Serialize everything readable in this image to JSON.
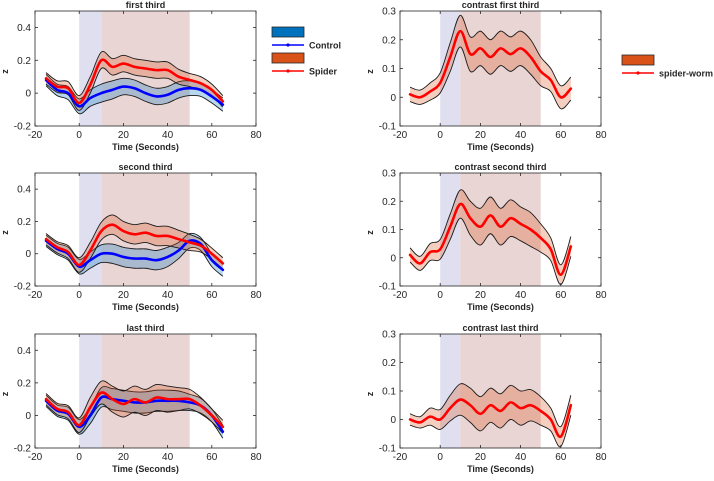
{
  "chart_data": [
    {
      "type": "line",
      "title": "first third",
      "xlabel": "Time (Seconds)",
      "ylabel": "z",
      "xlim": [
        -20,
        80
      ],
      "ylim": [
        -0.2,
        0.5
      ],
      "xticks": [
        "-20",
        "0",
        "20",
        "40",
        "60",
        "80"
      ],
      "yticks": [
        "-0.2",
        "0",
        "0.2",
        "0.4"
      ],
      "shaded_regions": [
        {
          "name": "anticipation",
          "x": [
            0,
            10
          ],
          "color": "#dcdcee"
        },
        {
          "name": "stimulus",
          "x": [
            10,
            50
          ],
          "color": "#e8d0d0"
        }
      ],
      "x": [
        -15,
        -10,
        -5,
        0,
        5,
        10,
        15,
        20,
        25,
        30,
        35,
        40,
        45,
        50,
        55,
        60,
        65
      ],
      "series": [
        {
          "name": "Control",
          "color": "#0000ff",
          "band_color": "#0072bd",
          "values": [
            0.08,
            0.02,
            0.0,
            -0.08,
            -0.03,
            0.0,
            0.02,
            0.04,
            0.03,
            0.0,
            -0.02,
            -0.01,
            0.02,
            0.03,
            0.02,
            -0.02,
            -0.07
          ],
          "band": [
            0.035,
            0.035,
            0.04,
            0.045,
            0.05,
            0.055,
            0.055,
            0.05,
            0.05,
            0.05,
            0.05,
            0.05,
            0.05,
            0.045,
            0.04,
            0.04,
            0.04
          ]
        },
        {
          "name": "Spider",
          "color": "#ff0000",
          "band_color": "#d95319",
          "values": [
            0.09,
            0.04,
            0.03,
            -0.06,
            0.05,
            0.2,
            0.16,
            0.18,
            0.16,
            0.15,
            0.14,
            0.14,
            0.1,
            0.08,
            0.06,
            0.02,
            -0.05
          ],
          "band": [
            0.035,
            0.035,
            0.04,
            0.045,
            0.05,
            0.05,
            0.05,
            0.05,
            0.05,
            0.05,
            0.05,
            0.05,
            0.045,
            0.04,
            0.04,
            0.035,
            0.035
          ]
        }
      ]
    },
    {
      "type": "line",
      "title": "contrast first third",
      "xlabel": "Time (Seconds)",
      "ylabel": "z",
      "xlim": [
        -20,
        80
      ],
      "ylim": [
        -0.1,
        0.3
      ],
      "xticks": [
        "-20",
        "0",
        "20",
        "40",
        "60",
        "80"
      ],
      "yticks": [
        "-0.1",
        "0",
        "0.1",
        "0.2",
        "0.3"
      ],
      "shaded_regions": [
        {
          "name": "anticipation",
          "x": [
            0,
            10
          ],
          "color": "#dcdcee"
        },
        {
          "name": "stimulus",
          "x": [
            10,
            50
          ],
          "color": "#e8d0d0"
        }
      ],
      "x": [
        -15,
        -10,
        -5,
        0,
        5,
        10,
        15,
        20,
        25,
        30,
        35,
        40,
        45,
        50,
        55,
        60,
        65
      ],
      "series": [
        {
          "name": "spider-worm",
          "color": "#ff0000",
          "band_color": "#d95319",
          "values": [
            0.01,
            0.0,
            0.02,
            0.05,
            0.14,
            0.23,
            0.15,
            0.17,
            0.14,
            0.17,
            0.15,
            0.17,
            0.14,
            0.09,
            0.06,
            0.0,
            0.03
          ],
          "band": [
            0.025,
            0.025,
            0.03,
            0.035,
            0.05,
            0.055,
            0.06,
            0.06,
            0.06,
            0.06,
            0.06,
            0.06,
            0.06,
            0.05,
            0.04,
            0.04,
            0.04
          ]
        }
      ]
    },
    {
      "type": "line",
      "title": "second third",
      "xlabel": "Time (Seconds)",
      "ylabel": "z",
      "xlim": [
        -20,
        80
      ],
      "ylim": [
        -0.2,
        0.5
      ],
      "xticks": [
        "-20",
        "0",
        "20",
        "40",
        "60",
        "80"
      ],
      "yticks": [
        "-0.2",
        "0",
        "0.2",
        "0.4"
      ],
      "shaded_regions": [
        {
          "name": "anticipation",
          "x": [
            0,
            10
          ],
          "color": "#dcdcee"
        },
        {
          "name": "stimulus",
          "x": [
            10,
            50
          ],
          "color": "#e8d0d0"
        }
      ],
      "x": [
        -15,
        -10,
        -5,
        0,
        5,
        10,
        15,
        20,
        25,
        30,
        35,
        40,
        45,
        50,
        55,
        60,
        65
      ],
      "series": [
        {
          "name": "Control",
          "color": "#0000ff",
          "band_color": "#0072bd",
          "values": [
            0.08,
            0.03,
            0.0,
            -0.08,
            -0.04,
            0.0,
            0.0,
            -0.02,
            -0.03,
            -0.03,
            -0.04,
            -0.02,
            0.02,
            0.08,
            0.06,
            -0.04,
            -0.1
          ],
          "band": [
            0.035,
            0.035,
            0.04,
            0.045,
            0.05,
            0.055,
            0.06,
            0.06,
            0.06,
            0.06,
            0.06,
            0.06,
            0.05,
            0.045,
            0.04,
            0.04,
            0.04
          ]
        },
        {
          "name": "Spider",
          "color": "#ff0000",
          "band_color": "#d95319",
          "values": [
            0.09,
            0.04,
            0.01,
            -0.07,
            0.02,
            0.14,
            0.18,
            0.14,
            0.12,
            0.13,
            0.11,
            0.11,
            0.09,
            0.07,
            0.05,
            0.0,
            -0.06
          ],
          "band": [
            0.035,
            0.035,
            0.04,
            0.045,
            0.05,
            0.055,
            0.06,
            0.06,
            0.06,
            0.06,
            0.06,
            0.06,
            0.055,
            0.05,
            0.04,
            0.035,
            0.035
          ]
        }
      ]
    },
    {
      "type": "line",
      "title": "contrast second third",
      "xlabel": "Time (Seconds)",
      "ylabel": "z",
      "xlim": [
        -20,
        80
      ],
      "ylim": [
        -0.1,
        0.3
      ],
      "xticks": [
        "-20",
        "0",
        "20",
        "40",
        "60",
        "80"
      ],
      "yticks": [
        "-0.1",
        "0",
        "0.1",
        "0.2",
        "0.3"
      ],
      "shaded_regions": [
        {
          "name": "anticipation",
          "x": [
            0,
            10
          ],
          "color": "#dcdcee"
        },
        {
          "name": "stimulus",
          "x": [
            10,
            50
          ],
          "color": "#e8d0d0"
        }
      ],
      "x": [
        -15,
        -10,
        -5,
        0,
        5,
        10,
        15,
        20,
        25,
        30,
        35,
        40,
        45,
        50,
        55,
        60,
        65
      ],
      "series": [
        {
          "name": "spider-worm",
          "color": "#ff0000",
          "band_color": "#d95319",
          "values": [
            0.01,
            -0.02,
            0.02,
            0.03,
            0.11,
            0.19,
            0.14,
            0.11,
            0.15,
            0.11,
            0.14,
            0.12,
            0.1,
            0.07,
            0.03,
            -0.06,
            0.04
          ],
          "band": [
            0.025,
            0.025,
            0.03,
            0.035,
            0.045,
            0.05,
            0.06,
            0.065,
            0.065,
            0.065,
            0.065,
            0.06,
            0.06,
            0.05,
            0.04,
            0.035,
            0.035
          ]
        }
      ]
    },
    {
      "type": "line",
      "title": "last third",
      "xlabel": "Time (Seconds)",
      "ylabel": "z",
      "xlim": [
        -20,
        80
      ],
      "ylim": [
        -0.2,
        0.5
      ],
      "xticks": [
        "-20",
        "0",
        "20",
        "40",
        "60",
        "80"
      ],
      "yticks": [
        "-0.2",
        "0",
        "0.2",
        "0.4"
      ],
      "shaded_regions": [
        {
          "name": "anticipation",
          "x": [
            0,
            10
          ],
          "color": "#dcdcee"
        },
        {
          "name": "stimulus",
          "x": [
            10,
            50
          ],
          "color": "#e8d0d0"
        }
      ],
      "x": [
        -15,
        -10,
        -5,
        0,
        5,
        10,
        15,
        20,
        25,
        30,
        35,
        40,
        45,
        50,
        55,
        60,
        65
      ],
      "series": [
        {
          "name": "Control",
          "color": "#0000ff",
          "band_color": "#0072bd",
          "values": [
            0.09,
            0.03,
            0.01,
            -0.07,
            0.0,
            0.11,
            0.1,
            0.09,
            0.08,
            0.08,
            0.09,
            0.09,
            0.09,
            0.08,
            0.06,
            0.0,
            -0.1
          ],
          "band": [
            0.035,
            0.035,
            0.04,
            0.045,
            0.05,
            0.06,
            0.065,
            0.065,
            0.065,
            0.065,
            0.065,
            0.065,
            0.06,
            0.05,
            0.045,
            0.04,
            0.04
          ]
        },
        {
          "name": "Spider",
          "color": "#ff0000",
          "band_color": "#d95319",
          "values": [
            0.1,
            0.04,
            0.02,
            -0.06,
            0.05,
            0.14,
            0.1,
            0.07,
            0.1,
            0.08,
            0.11,
            0.1,
            0.1,
            0.1,
            0.06,
            0.0,
            -0.07
          ],
          "band": [
            0.035,
            0.035,
            0.04,
            0.045,
            0.06,
            0.07,
            0.08,
            0.08,
            0.08,
            0.08,
            0.08,
            0.08,
            0.07,
            0.06,
            0.05,
            0.04,
            0.04
          ]
        }
      ]
    },
    {
      "type": "line",
      "title": "contrast last third",
      "xlabel": "Time (Seconds)",
      "ylabel": "z",
      "xlim": [
        -20,
        80
      ],
      "ylim": [
        -0.1,
        0.3
      ],
      "xticks": [
        "-20",
        "0",
        "20",
        "40",
        "60",
        "80"
      ],
      "yticks": [
        "-0.1",
        "0",
        "0.1",
        "0.2",
        "0.3"
      ],
      "shaded_regions": [
        {
          "name": "anticipation",
          "x": [
            0,
            10
          ],
          "color": "#dcdcee"
        },
        {
          "name": "stimulus",
          "x": [
            10,
            50
          ],
          "color": "#e8d0d0"
        }
      ],
      "x": [
        -15,
        -10,
        -5,
        0,
        5,
        10,
        15,
        20,
        25,
        30,
        35,
        40,
        45,
        50,
        55,
        60,
        65
      ],
      "series": [
        {
          "name": "spider-worm",
          "color": "#ff0000",
          "band_color": "#d95319",
          "values": [
            0.0,
            -0.01,
            0.01,
            0.0,
            0.04,
            0.07,
            0.05,
            0.02,
            0.05,
            0.03,
            0.06,
            0.04,
            0.05,
            0.03,
            0.0,
            -0.06,
            0.05
          ],
          "band": [
            0.02,
            0.02,
            0.03,
            0.035,
            0.045,
            0.055,
            0.06,
            0.06,
            0.06,
            0.06,
            0.06,
            0.06,
            0.055,
            0.05,
            0.04,
            0.035,
            0.035
          ]
        }
      ]
    }
  ],
  "legends": {
    "left": {
      "entries": [
        {
          "name": "",
          "kind": "patch",
          "color": "#0072bd"
        },
        {
          "name": "Control",
          "kind": "line",
          "color": "#0000ff"
        },
        {
          "name": "",
          "kind": "patch",
          "color": "#d95319"
        },
        {
          "name": "Spider",
          "kind": "line",
          "color": "#ff0000"
        }
      ]
    },
    "right": {
      "entries": [
        {
          "name": "",
          "kind": "patch",
          "color": "#d95319"
        },
        {
          "name": "spider-worm",
          "kind": "line",
          "color": "#ff0000"
        }
      ]
    }
  }
}
